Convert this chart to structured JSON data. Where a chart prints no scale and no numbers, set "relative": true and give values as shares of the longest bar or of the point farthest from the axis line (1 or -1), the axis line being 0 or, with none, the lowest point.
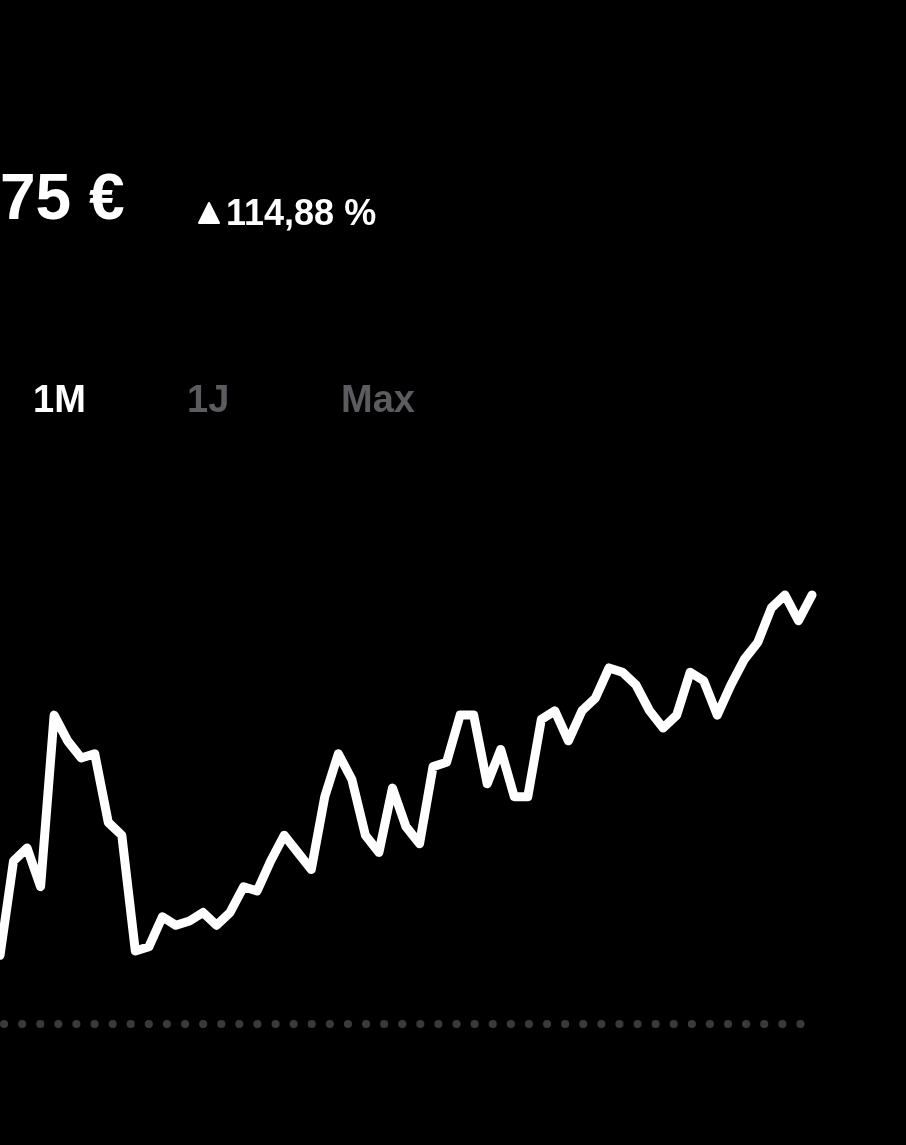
{
  "chart_data": {
    "type": "line",
    "title": "75 €",
    "subtitle": "114,88 %",
    "annotations": [
      "1M",
      "1J",
      "Max"
    ],
    "relative": true,
    "marker": "none",
    "categories": [
      null,
      null,
      null,
      null,
      null,
      null,
      null,
      null,
      null,
      null,
      null,
      null,
      null,
      null,
      null,
      null,
      null,
      null,
      null,
      null,
      null,
      null,
      null,
      null,
      null,
      null,
      null,
      null,
      null,
      null,
      null,
      null,
      null,
      null,
      null,
      null,
      null,
      null,
      null,
      null,
      null,
      null,
      null,
      null,
      null,
      null,
      null,
      null,
      null,
      null,
      null,
      null,
      null,
      null,
      null,
      null,
      null,
      null,
      null,
      null,
      null
    ],
    "series": [
      {
        "color": "#ffffff",
        "values": [
          0.16,
          0.38,
          0.41,
          0.32,
          0.72,
          0.66,
          0.62,
          0.63,
          0.47,
          0.44,
          0.17,
          0.18,
          0.25,
          0.23,
          0.24,
          0.26,
          0.23,
          0.26,
          0.32,
          0.31,
          0.38,
          0.44,
          0.4,
          0.36,
          0.53,
          0.63,
          0.57,
          0.44,
          0.4,
          0.55,
          0.46,
          0.42,
          0.6,
          0.61,
          0.72,
          0.72,
          0.56,
          0.64,
          0.53,
          0.53,
          0.71,
          0.73,
          0.66,
          0.73,
          0.76,
          0.83,
          0.82,
          0.79,
          0.73,
          0.69,
          0.72,
          0.82,
          0.8,
          0.72,
          0.79,
          0.85,
          0.89,
          0.97,
          1,
          0.94,
          1
        ]
      }
    ],
    "ref_lines": [
      {
        "axis": "y",
        "value": 0,
        "color": "#3a3a3c",
        "line_style": "dotted"
      }
    ]
  }
}
